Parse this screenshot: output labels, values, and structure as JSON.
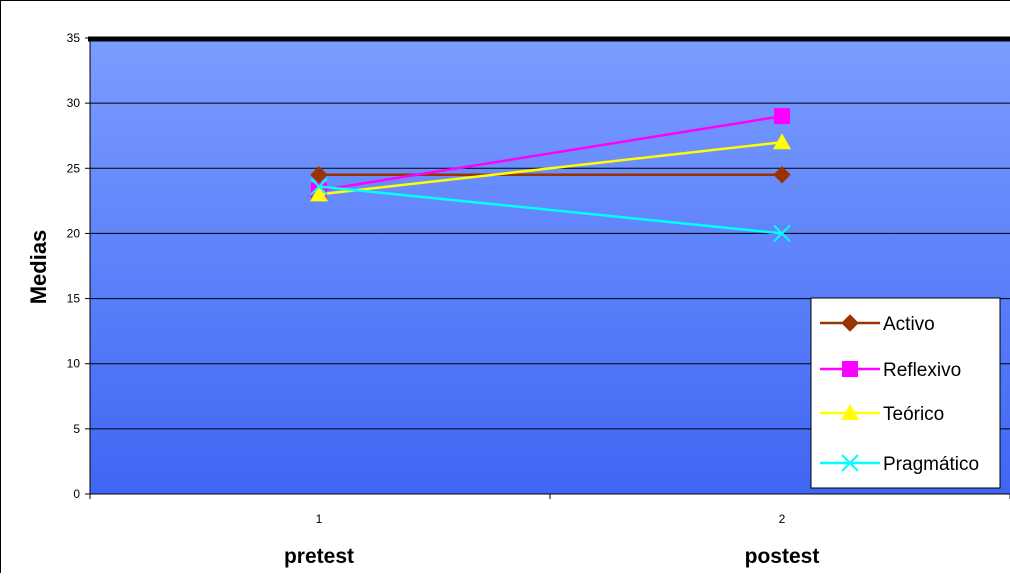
{
  "chart_data": {
    "type": "line",
    "categories": [
      "1",
      "2"
    ],
    "category_labels": [
      "pretest",
      "postest"
    ],
    "ylabel": "Medias",
    "ylim": [
      0,
      35
    ],
    "yticks": [
      0,
      5,
      10,
      15,
      20,
      25,
      30,
      35
    ],
    "grid": true,
    "legend_position": "bottom-right",
    "series": [
      {
        "name": "Activo",
        "values": [
          24.5,
          24.5
        ],
        "color": "#993300",
        "marker": "diamond"
      },
      {
        "name": "Reflexivo",
        "values": [
          23.3,
          29.0
        ],
        "color": "#FF00FF",
        "marker": "square"
      },
      {
        "name": "Teórico",
        "values": [
          23.0,
          27.0
        ],
        "color": "#FFFF00",
        "marker": "triangle"
      },
      {
        "name": "Pragmático",
        "values": [
          23.6,
          20.0
        ],
        "color": "#00FFFF",
        "marker": "x"
      }
    ],
    "colors": {
      "plot_top": "#7B9DFF",
      "plot_bottom": "#3F66F4",
      "gridline": "#000000"
    }
  }
}
